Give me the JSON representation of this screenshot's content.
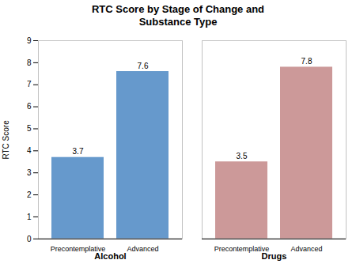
{
  "chart_data": {
    "type": "bar",
    "title": "RTC Score by Stage of Change and\nSubstance Type",
    "ylabel": "RTC Score",
    "categories": [
      "Precontemplative",
      "Advanced"
    ],
    "series": [
      {
        "name": "Alcohol",
        "color": "#6699cc",
        "values": [
          3.7,
          7.6
        ]
      },
      {
        "name": "Drugs",
        "color": "#cc9999",
        "values": [
          3.5,
          7.8
        ]
      }
    ],
    "ylim": [
      0,
      9
    ],
    "yticks": [
      0,
      1,
      2,
      3,
      4,
      5,
      6,
      7,
      8,
      9
    ],
    "data_labels": true
  }
}
